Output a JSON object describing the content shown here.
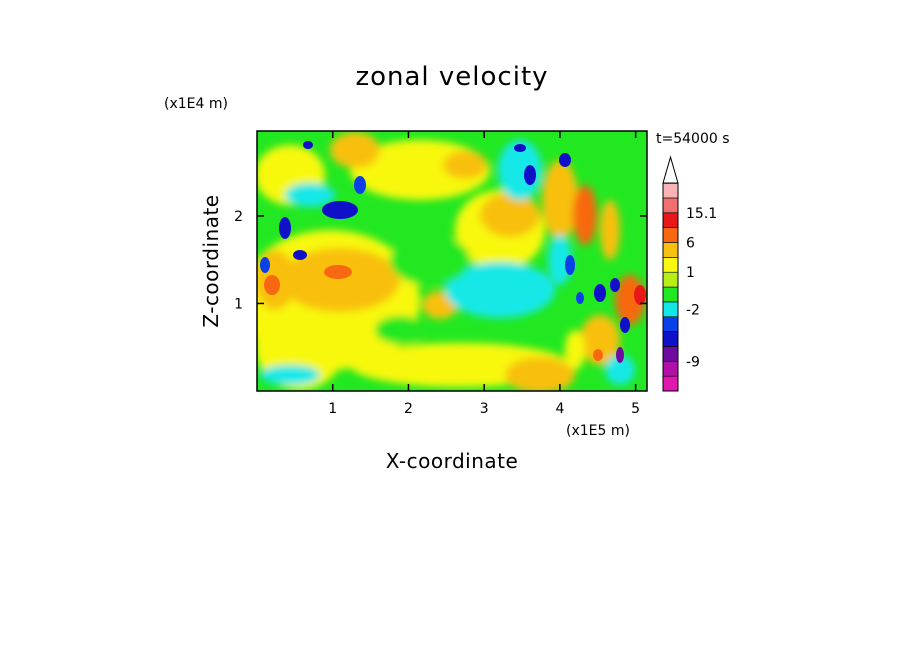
{
  "chart_data": {
    "type": "heatmap",
    "title": "zonal velocity",
    "xlabel": "X-coordinate",
    "ylabel": "Z-coordinate",
    "x_scale_label": "(x1E5 m)",
    "y_scale_label": "(x1E4 m)",
    "time_label": "t=54000 s",
    "xlim": [
      0,
      5.15
    ],
    "ylim": [
      0,
      2.97
    ],
    "x_ticks": [
      {
        "value": 1,
        "label": "1"
      },
      {
        "value": 2,
        "label": "2"
      },
      {
        "value": 3,
        "label": "3"
      },
      {
        "value": 4,
        "label": "4"
      },
      {
        "value": 5,
        "label": "5"
      }
    ],
    "y_ticks": [
      {
        "value": 1,
        "label": "1"
      },
      {
        "value": 2,
        "label": "2"
      }
    ],
    "colorbar": {
      "bins": [
        {
          "color": "#e018b0"
        },
        {
          "color": "#b010a8"
        },
        {
          "color": "#6e0aa0"
        },
        {
          "color": "#1010c8"
        },
        {
          "color": "#0a40e8"
        },
        {
          "color": "#12e8e8"
        },
        {
          "color": "#22e822"
        },
        {
          "color": "#b8ee18"
        },
        {
          "color": "#f8f810"
        },
        {
          "color": "#f8c010"
        },
        {
          "color": "#f86810"
        },
        {
          "color": "#e81818"
        },
        {
          "color": "#f07070"
        },
        {
          "color": "#f8b4b4"
        }
      ],
      "labels": [
        {
          "text": "15.1",
          "bin": 12
        },
        {
          "text": "6",
          "bin": 10
        },
        {
          "text": "1",
          "bin": 8
        },
        {
          "text": "-2",
          "bin": 5.5
        },
        {
          "text": "-9",
          "bin": 2
        }
      ],
      "extend_top": true
    },
    "field_features": [
      {
        "region": "broad lower-left",
        "value": "orange/yellow (about +3 to +6)"
      },
      {
        "region": "upper-left jet near x=1.2, z=2.1",
        "value": "dark blue (about -9)"
      },
      {
        "region": "center x=2-3.5, z=0.5-1.8",
        "value": "green/cyan (about -2 to 0)"
      },
      {
        "region": "upper-center x=3.4, z=2.0",
        "value": "orange (about +6)"
      },
      {
        "region": "right side x>4",
        "value": "alternating stripes (wave pattern)"
      },
      {
        "region": "bottom x=2-4, z<0.3",
        "value": "yellow (about +1)"
      }
    ]
  }
}
